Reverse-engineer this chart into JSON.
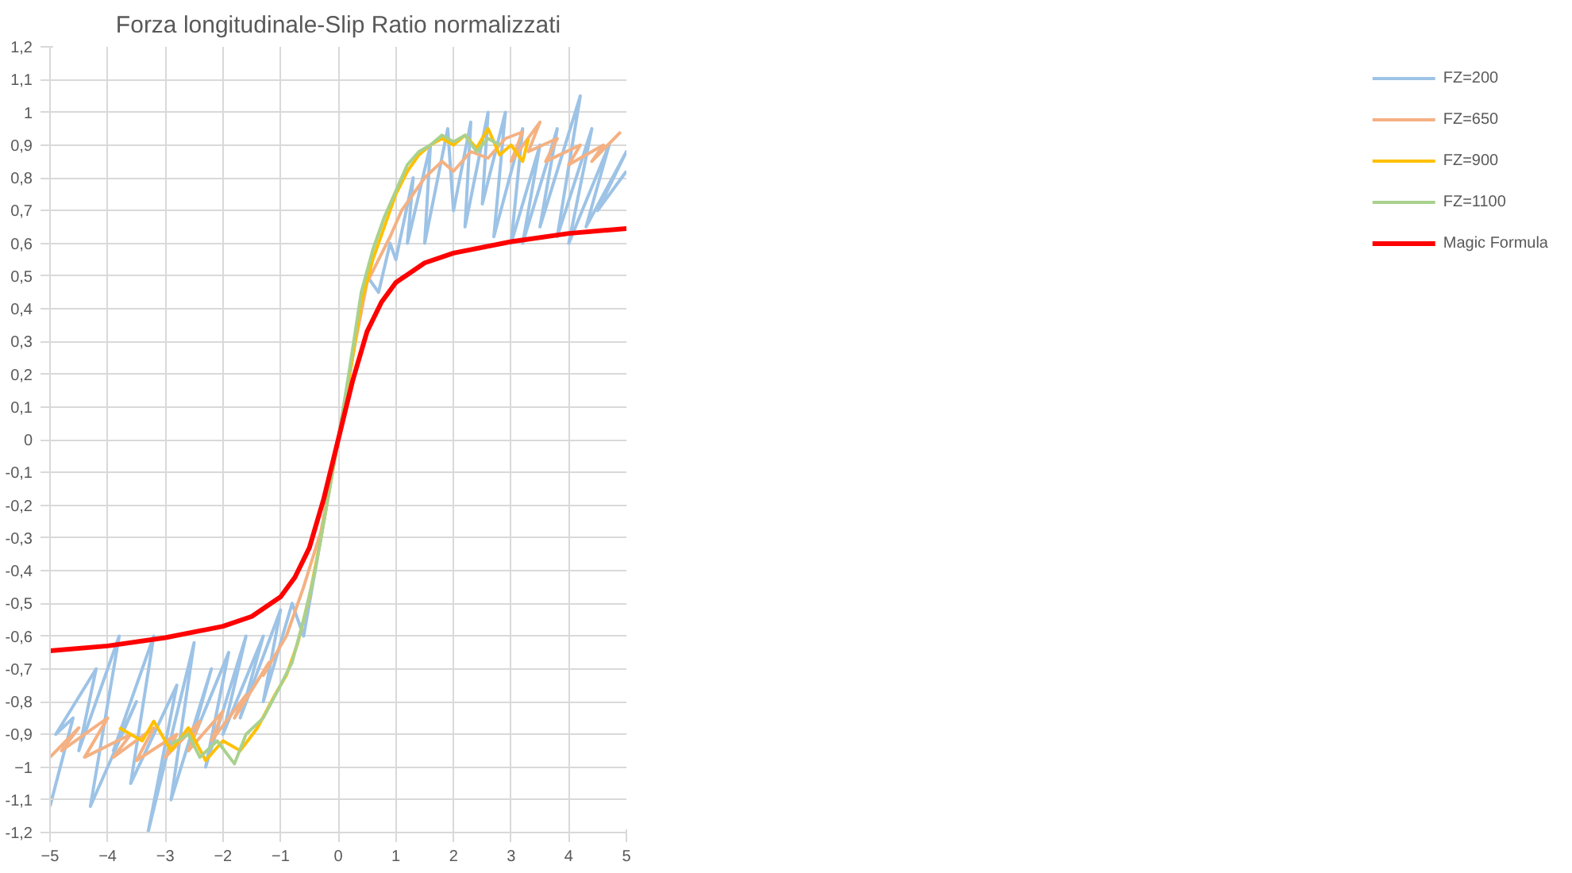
{
  "chart_data": {
    "type": "line",
    "title": "Forza longitudinale-Slip Ratio normalizzati",
    "xlim": [
      -5,
      5
    ],
    "xticks": [
      -5,
      -4,
      -3,
      -2,
      -1,
      0,
      1,
      2,
      3,
      4,
      5
    ],
    "ylim": [
      -1.2,
      1.2
    ],
    "yticks": [
      {
        "value": -1.2,
        "label": "-1,2"
      },
      {
        "value": -1.1,
        "label": "-1,1"
      },
      -1,
      {
        "value": -0.9,
        "label": "-0,9"
      },
      {
        "value": -0.8,
        "label": "-0,8"
      },
      {
        "value": -0.7,
        "label": "-0,7"
      },
      {
        "value": -0.6,
        "label": "-0,6"
      },
      {
        "value": -0.5,
        "label": "-0,5"
      },
      {
        "value": -0.4,
        "label": "-0,4"
      },
      {
        "value": -0.3,
        "label": "-0,3"
      },
      {
        "value": -0.2,
        "label": "-0,2"
      },
      {
        "value": -0.1,
        "label": "-0,1"
      },
      0,
      {
        "value": 0.1,
        "label": "0,1"
      },
      {
        "value": 0.2,
        "label": "0,2"
      },
      {
        "value": 0.3,
        "label": "0,3"
      },
      {
        "value": 0.4,
        "label": "0,4"
      },
      {
        "value": 0.5,
        "label": "0,5"
      },
      {
        "value": 0.6,
        "label": "0,6"
      },
      {
        "value": 0.7,
        "label": "0,7"
      },
      {
        "value": 0.8,
        "label": "0,8"
      },
      {
        "value": 0.9,
        "label": "0,9"
      },
      1,
      {
        "value": 1.1,
        "label": "1,1"
      },
      {
        "value": 1.2,
        "label": "1,2"
      }
    ],
    "grid": true,
    "legend": "right",
    "marker": "none",
    "line_style": "solid",
    "series": [
      {
        "name": "FZ=200",
        "color": "#9dc3e6",
        "x": [
          -5,
          -4.6,
          -4.9,
          -4.2,
          -4.5,
          -3.8,
          -4.3,
          -3.5,
          -3.9,
          -3.2,
          -3.6,
          -2.8,
          -3.3,
          -2.5,
          -2.9,
          -2.2,
          -2.6,
          -1.9,
          -2.3,
          -1.6,
          -2.0,
          -1.3,
          -1.7,
          -1.0,
          -1.3,
          -0.8,
          -0.6,
          -0.4,
          -0.2,
          0,
          0.2,
          0.4,
          0.5,
          0.7,
          0.9,
          1.0,
          1.3,
          1.2,
          1.6,
          1.5,
          1.9,
          2.0,
          2.3,
          2.2,
          2.6,
          2.5,
          2.9,
          2.7,
          3.2,
          3.0,
          3.5,
          3.2,
          3.8,
          3.5,
          4.2,
          3.8,
          4.4,
          4.0,
          4.7,
          4.3,
          5.0,
          4.5,
          5.0
        ],
        "values": [
          -1.12,
          -0.85,
          -0.9,
          -0.7,
          -0.95,
          -0.6,
          -1.12,
          -0.8,
          -0.95,
          -0.6,
          -1.05,
          -0.75,
          -1.2,
          -0.62,
          -1.1,
          -0.7,
          -0.95,
          -0.65,
          -1.0,
          -0.6,
          -0.9,
          -0.6,
          -0.85,
          -0.52,
          -0.8,
          -0.5,
          -0.6,
          -0.4,
          -0.2,
          0,
          0.2,
          0.42,
          0.5,
          0.45,
          0.6,
          0.55,
          0.8,
          0.6,
          0.9,
          0.6,
          0.95,
          0.7,
          0.97,
          0.65,
          1.0,
          0.72,
          1.0,
          0.62,
          0.95,
          0.6,
          0.9,
          0.6,
          0.95,
          0.65,
          1.05,
          0.62,
          0.95,
          0.6,
          0.9,
          0.65,
          0.88,
          0.7,
          0.82
        ]
      },
      {
        "name": "FZ=650",
        "color": "#f4b183",
        "x": [
          -5,
          -4.5,
          -4.8,
          -4.0,
          -4.4,
          -3.6,
          -3.9,
          -3.2,
          -3.5,
          -2.8,
          -3.0,
          -2.4,
          -2.6,
          -2.0,
          -2.2,
          -1.6,
          -1.8,
          -1.2,
          -1.3,
          -0.9,
          -0.6,
          -0.3,
          0,
          0.3,
          0.5,
          0.7,
          0.9,
          1.1,
          1.3,
          1.5,
          1.8,
          2.0,
          2.3,
          2.6,
          2.9,
          3.2,
          3.0,
          3.5,
          3.3,
          3.8,
          3.6,
          4.2,
          4.0,
          4.6,
          4.4,
          4.9
        ],
        "values": [
          -0.97,
          -0.88,
          -0.95,
          -0.85,
          -0.97,
          -0.9,
          -0.97,
          -0.88,
          -0.98,
          -0.9,
          -0.97,
          -0.86,
          -0.95,
          -0.83,
          -0.92,
          -0.78,
          -0.85,
          -0.68,
          -0.72,
          -0.6,
          -0.45,
          -0.28,
          0,
          0.3,
          0.48,
          0.55,
          0.62,
          0.7,
          0.75,
          0.8,
          0.85,
          0.82,
          0.88,
          0.86,
          0.92,
          0.94,
          0.85,
          0.97,
          0.88,
          0.92,
          0.85,
          0.9,
          0.84,
          0.9,
          0.85,
          0.94
        ]
      },
      {
        "name": "FZ=900",
        "color": "#ffc000",
        "x": [
          -3.8,
          -3.4,
          -3.2,
          -2.9,
          -2.6,
          -2.3,
          -2.0,
          -1.7,
          -1.4,
          -1.1,
          -0.9,
          -0.7,
          -0.5,
          -0.3,
          0,
          0.2,
          0.4,
          0.6,
          0.8,
          1.0,
          1.2,
          1.4,
          1.6,
          1.8,
          2.0,
          2.2,
          2.4,
          2.6,
          2.8,
          3.0,
          3.2,
          3.3
        ],
        "values": [
          -0.88,
          -0.92,
          -0.86,
          -0.95,
          -0.88,
          -0.98,
          -0.92,
          -0.95,
          -0.88,
          -0.78,
          -0.72,
          -0.62,
          -0.48,
          -0.3,
          0,
          0.2,
          0.42,
          0.55,
          0.65,
          0.75,
          0.82,
          0.87,
          0.9,
          0.92,
          0.9,
          0.93,
          0.89,
          0.95,
          0.87,
          0.9,
          0.85,
          0.92
        ]
      },
      {
        "name": "FZ=1100",
        "color": "#a9d18e",
        "x": [
          -2.9,
          -2.6,
          -2.4,
          -2.1,
          -1.8,
          -1.6,
          -1.3,
          -1.0,
          -0.8,
          -0.6,
          -0.4,
          -0.2,
          0,
          0.2,
          0.4,
          0.6,
          0.8,
          1.0,
          1.2,
          1.4,
          1.6,
          1.8,
          2.0,
          2.2,
          2.4,
          2.6,
          2.8
        ],
        "values": [
          -0.93,
          -0.9,
          -0.97,
          -0.92,
          -0.99,
          -0.9,
          -0.85,
          -0.75,
          -0.68,
          -0.55,
          -0.4,
          -0.2,
          0,
          0.22,
          0.45,
          0.58,
          0.68,
          0.76,
          0.84,
          0.88,
          0.9,
          0.93,
          0.91,
          0.93,
          0.88,
          0.92,
          0.9
        ]
      },
      {
        "name": "Magic Formula",
        "color": "#ff0000",
        "x": [
          -5,
          -4,
          -3,
          -2,
          -1.5,
          -1,
          -0.75,
          -0.5,
          -0.25,
          0,
          0.25,
          0.5,
          0.75,
          1,
          1.5,
          2,
          3,
          4,
          5
        ],
        "values": [
          -0.645,
          -0.63,
          -0.605,
          -0.57,
          -0.54,
          -0.48,
          -0.42,
          -0.33,
          -0.18,
          0,
          0.18,
          0.33,
          0.42,
          0.48,
          0.54,
          0.57,
          0.605,
          0.63,
          0.645
        ]
      }
    ]
  }
}
